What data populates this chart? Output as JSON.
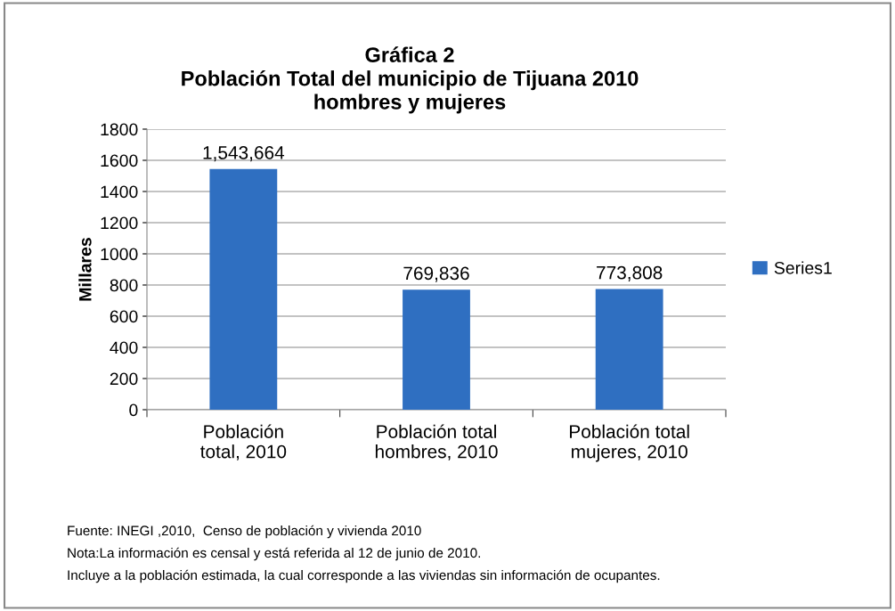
{
  "chart_data": {
    "type": "bar",
    "title": "Gráfica 2\nPoblación Total del municipio de Tijuana 2010\nhombres y mujeres",
    "ylabel": "Millares",
    "categories": [
      "Población\ntotal, 2010",
      "Población total\nhombres, 2010",
      "Población total\nmujeres, 2010"
    ],
    "series": [
      {
        "name": "Series1",
        "color": "#2f6fc1",
        "values": [
          1543.664,
          769.836,
          773.808
        ]
      }
    ],
    "ylim": [
      0,
      1800
    ],
    "yticks": [
      0,
      200,
      400,
      600,
      800,
      1000,
      1200,
      1400,
      1600,
      1800
    ],
    "grid": "y",
    "legend": "right",
    "annotations": [
      {
        "text": "1,543,664",
        "x": "Población\ntotal, 2010",
        "y": 1543.664
      },
      {
        "text": "769,836",
        "x": "Población total\nhombres, 2010",
        "y": 769.836
      },
      {
        "text": "773,808",
        "x": "Población total\nmujeres, 2010",
        "y": 773.808
      },
      "Fuente: INEGI ,2010,  Censo de población y vivienda 2010",
      "Nota:La información es censal y está referida al 12 de junio de 2010.",
      "Incluye a la población estimada, la cual corresponde a las viviendas sin información de ocupantes."
    ]
  }
}
